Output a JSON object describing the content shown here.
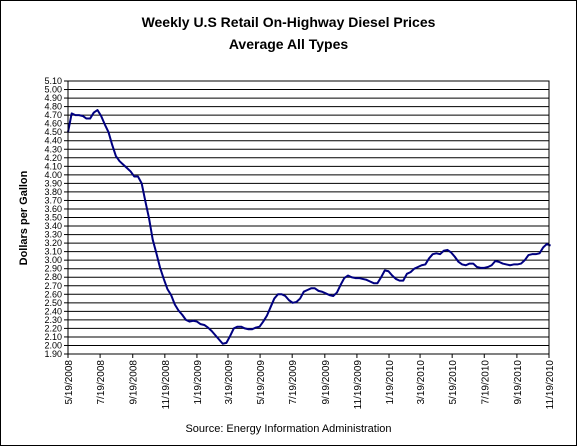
{
  "chart_data": {
    "type": "line",
    "title": "Weekly U.S Retail On-Highway Diesel Prices",
    "subtitle": "Average All Types",
    "ylabel": "Dollars per Gallon",
    "xlabel": "",
    "source": "Source:  Energy Information Administration",
    "ylim": [
      1.9,
      5.1
    ],
    "y_ticks": [
      "1.90",
      "2.00",
      "2.10",
      "2.20",
      "2.30",
      "2.40",
      "2.50",
      "2.60",
      "2.70",
      "2.80",
      "2.90",
      "3.00",
      "3.10",
      "3.20",
      "3.30",
      "3.40",
      "3.50",
      "3.60",
      "3.70",
      "3.80",
      "3.90",
      "4.00",
      "4.10",
      "4.20",
      "4.30",
      "4.40",
      "4.50",
      "4.60",
      "4.70",
      "4.80",
      "4.90",
      "5.00",
      "5.10"
    ],
    "x_ticks": [
      "5/19/2008",
      "7/19/2008",
      "9/19/2008",
      "11/19/2008",
      "1/19/2009",
      "3/19/2009",
      "5/19/2009",
      "7/19/2009",
      "9/19/2009",
      "11/19/2009",
      "1/19/2010",
      "3/19/2010",
      "5/19/2010",
      "7/19/2010",
      "9/19/2010",
      "11/19/2010"
    ],
    "grid": "horizontal",
    "line_color": "#000080",
    "series": [
      {
        "name": "",
        "points": [
          [
            "2008-05-19",
            4.5
          ],
          [
            "2008-05-26",
            4.72
          ],
          [
            "2008-06-02",
            4.7
          ],
          [
            "2008-06-09",
            4.7
          ],
          [
            "2008-06-16",
            4.69
          ],
          [
            "2008-06-23",
            4.66
          ],
          [
            "2008-06-30",
            4.66
          ],
          [
            "2008-07-07",
            4.73
          ],
          [
            "2008-07-14",
            4.76
          ],
          [
            "2008-07-21",
            4.69
          ],
          [
            "2008-07-28",
            4.59
          ],
          [
            "2008-08-04",
            4.5
          ],
          [
            "2008-08-11",
            4.35
          ],
          [
            "2008-08-18",
            4.22
          ],
          [
            "2008-08-25",
            4.16
          ],
          [
            "2008-09-01",
            4.12
          ],
          [
            "2008-09-08",
            4.08
          ],
          [
            "2008-09-15",
            4.04
          ],
          [
            "2008-09-22",
            3.98
          ],
          [
            "2008-09-29",
            3.98
          ],
          [
            "2008-10-06",
            3.9
          ],
          [
            "2008-10-13",
            3.69
          ],
          [
            "2008-10-20",
            3.49
          ],
          [
            "2008-10-27",
            3.24
          ],
          [
            "2008-11-03",
            3.08
          ],
          [
            "2008-11-10",
            2.91
          ],
          [
            "2008-11-17",
            2.78
          ],
          [
            "2008-11-24",
            2.66
          ],
          [
            "2008-12-01",
            2.59
          ],
          [
            "2008-12-08",
            2.48
          ],
          [
            "2008-12-15",
            2.41
          ],
          [
            "2008-12-22",
            2.36
          ],
          [
            "2008-12-29",
            2.3
          ],
          [
            "2009-01-05",
            2.28
          ],
          [
            "2009-01-12",
            2.29
          ],
          [
            "2009-01-19",
            2.28
          ],
          [
            "2009-01-26",
            2.25
          ],
          [
            "2009-02-02",
            2.24
          ],
          [
            "2009-02-09",
            2.21
          ],
          [
            "2009-02-16",
            2.17
          ],
          [
            "2009-02-23",
            2.12
          ],
          [
            "2009-03-02",
            2.07
          ],
          [
            "2009-03-09",
            2.02
          ],
          [
            "2009-03-16",
            2.03
          ],
          [
            "2009-03-23",
            2.11
          ],
          [
            "2009-03-30",
            2.2
          ],
          [
            "2009-04-06",
            2.22
          ],
          [
            "2009-04-13",
            2.22
          ],
          [
            "2009-04-20",
            2.2
          ],
          [
            "2009-04-27",
            2.19
          ],
          [
            "2009-05-04",
            2.19
          ],
          [
            "2009-05-11",
            2.21
          ],
          [
            "2009-05-18",
            2.22
          ],
          [
            "2009-05-25",
            2.28
          ],
          [
            "2009-06-01",
            2.35
          ],
          [
            "2009-06-08",
            2.45
          ],
          [
            "2009-06-15",
            2.55
          ],
          [
            "2009-06-22",
            2.6
          ],
          [
            "2009-06-29",
            2.6
          ],
          [
            "2009-07-06",
            2.58
          ],
          [
            "2009-07-13",
            2.53
          ],
          [
            "2009-07-20",
            2.5
          ],
          [
            "2009-07-27",
            2.51
          ],
          [
            "2009-08-03",
            2.55
          ],
          [
            "2009-08-10",
            2.63
          ],
          [
            "2009-08-17",
            2.65
          ],
          [
            "2009-08-24",
            2.67
          ],
          [
            "2009-08-31",
            2.67
          ],
          [
            "2009-09-07",
            2.64
          ],
          [
            "2009-09-14",
            2.63
          ],
          [
            "2009-09-21",
            2.61
          ],
          [
            "2009-09-28",
            2.59
          ],
          [
            "2009-10-05",
            2.58
          ],
          [
            "2009-10-12",
            2.62
          ],
          [
            "2009-10-19",
            2.71
          ],
          [
            "2009-10-26",
            2.79
          ],
          [
            "2009-11-02",
            2.82
          ],
          [
            "2009-11-09",
            2.8
          ],
          [
            "2009-11-16",
            2.79
          ],
          [
            "2009-11-23",
            2.79
          ],
          [
            "2009-11-30",
            2.78
          ],
          [
            "2009-12-07",
            2.77
          ],
          [
            "2009-12-14",
            2.75
          ],
          [
            "2009-12-21",
            2.73
          ],
          [
            "2009-12-28",
            2.73
          ],
          [
            "2010-01-04",
            2.8
          ],
          [
            "2010-01-11",
            2.88
          ],
          [
            "2010-01-18",
            2.87
          ],
          [
            "2010-01-25",
            2.82
          ],
          [
            "2010-02-01",
            2.78
          ],
          [
            "2010-02-08",
            2.76
          ],
          [
            "2010-02-15",
            2.76
          ],
          [
            "2010-02-22",
            2.84
          ],
          [
            "2010-03-01",
            2.86
          ],
          [
            "2010-03-08",
            2.9
          ],
          [
            "2010-03-15",
            2.92
          ],
          [
            "2010-03-22",
            2.94
          ],
          [
            "2010-03-29",
            2.95
          ],
          [
            "2010-04-05",
            3.02
          ],
          [
            "2010-04-12",
            3.07
          ],
          [
            "2010-04-19",
            3.08
          ],
          [
            "2010-04-26",
            3.07
          ],
          [
            "2010-05-03",
            3.11
          ],
          [
            "2010-05-10",
            3.12
          ],
          [
            "2010-05-17",
            3.09
          ],
          [
            "2010-05-24",
            3.04
          ],
          [
            "2010-05-31",
            2.98
          ],
          [
            "2010-06-07",
            2.95
          ],
          [
            "2010-06-14",
            2.94
          ],
          [
            "2010-06-21",
            2.96
          ],
          [
            "2010-06-28",
            2.96
          ],
          [
            "2010-07-05",
            2.92
          ],
          [
            "2010-07-12",
            2.91
          ],
          [
            "2010-07-19",
            2.91
          ],
          [
            "2010-07-26",
            2.92
          ],
          [
            "2010-08-02",
            2.94
          ],
          [
            "2010-08-09",
            2.99
          ],
          [
            "2010-08-16",
            2.98
          ],
          [
            "2010-08-23",
            2.96
          ],
          [
            "2010-08-30",
            2.95
          ],
          [
            "2010-09-06",
            2.94
          ],
          [
            "2010-09-13",
            2.95
          ],
          [
            "2010-09-20",
            2.95
          ],
          [
            "2010-09-27",
            2.96
          ],
          [
            "2010-10-04",
            3.0
          ],
          [
            "2010-10-11",
            3.06
          ],
          [
            "2010-10-18",
            3.07
          ],
          [
            "2010-10-25",
            3.07
          ],
          [
            "2010-11-01",
            3.08
          ],
          [
            "2010-11-08",
            3.15
          ],
          [
            "2010-11-15",
            3.19
          ],
          [
            "2010-11-22",
            3.17
          ]
        ]
      }
    ]
  }
}
